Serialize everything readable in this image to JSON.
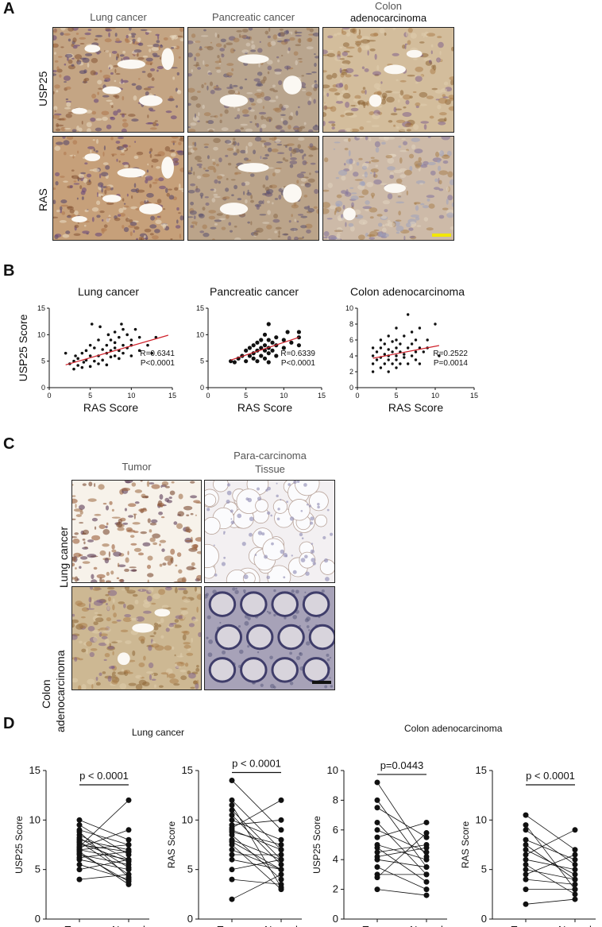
{
  "panels": {
    "A": "A",
    "B": "B",
    "C": "C",
    "D": "D"
  },
  "panelA": {
    "col1": "Lung cancer",
    "col2": "Pancreatic  cancer",
    "col3a": "Colon",
    "col3b": "adenocarcinoma",
    "row1": "USP25",
    "row2": "RAS",
    "scalebar_color": "#f2e600"
  },
  "panelB": {
    "plots": [
      {
        "title": "Lung cancer",
        "ylabel": "USP25 Score",
        "xlabel": "RAS Score",
        "r": "R=0.6341",
        "p": "P<0.0001"
      },
      {
        "title": "Pancreatic cancer",
        "ylabel": "",
        "xlabel": "RAS Score",
        "r": "R=0.6339",
        "p": "P<0.0001"
      },
      {
        "title": "Colon adenocarcinoma",
        "ylabel": "",
        "xlabel": "RAS Score",
        "r": "R=0.2522",
        "p": "P=0.0014"
      }
    ]
  },
  "panelC": {
    "col1": "Tumor",
    "col2a": "Para-carcinoma",
    "col2b": "Tissue",
    "row1": "Lung cancer",
    "row2a": "Colon",
    "row2b": "adenocarcinoma"
  },
  "panelD": {
    "group1": "Lung cancer",
    "group2": "Colon adenocarcinoma",
    "plots": [
      {
        "ylabel": "USP25 Score",
        "p": "p < 0.0001"
      },
      {
        "ylabel": "RAS Score",
        "p": "p < 0.0001"
      },
      {
        "ylabel": "USP25 Score",
        "p": "p=0.0443"
      },
      {
        "ylabel": "RAS Score",
        "p": "p < 0.0001"
      }
    ],
    "x1": "Tumor",
    "x2": "Normal"
  },
  "chart_data": [
    {
      "type": "scatter",
      "title": "Lung cancer",
      "xlabel": "RAS Score",
      "ylabel": "USP25 Score",
      "xlim": [
        0,
        15
      ],
      "ylim": [
        0,
        15
      ],
      "xticks": [
        0,
        5,
        10,
        15
      ],
      "yticks": [
        0,
        5,
        10,
        15
      ],
      "fit": {
        "x": [
          2,
          14.5
        ],
        "y": [
          4.3,
          9.9
        ]
      },
      "points": [
        [
          2,
          6.5
        ],
        [
          2.5,
          4.5
        ],
        [
          3,
          3.5
        ],
        [
          3,
          5
        ],
        [
          3.2,
          6
        ],
        [
          3.5,
          4.2
        ],
        [
          3.5,
          5.5
        ],
        [
          4,
          3.8
        ],
        [
          4,
          6.5
        ],
        [
          4.2,
          4.8
        ],
        [
          4.5,
          5.2
        ],
        [
          4.5,
          7
        ],
        [
          5,
          4
        ],
        [
          5,
          6
        ],
        [
          5,
          8
        ],
        [
          5.2,
          12
        ],
        [
          5.5,
          5
        ],
        [
          5.5,
          7.5
        ],
        [
          6,
          4.5
        ],
        [
          6,
          6
        ],
        [
          6,
          9
        ],
        [
          6.2,
          11.5
        ],
        [
          6.5,
          5.2
        ],
        [
          6.5,
          7.2
        ],
        [
          7,
          4.3
        ],
        [
          7,
          6.5
        ],
        [
          7,
          8
        ],
        [
          7.2,
          10
        ],
        [
          7.5,
          5.8
        ],
        [
          7.5,
          7
        ],
        [
          7.5,
          9
        ],
        [
          8,
          6
        ],
        [
          8,
          7.5
        ],
        [
          8,
          8.5
        ],
        [
          8,
          10.5
        ],
        [
          8.5,
          5.5
        ],
        [
          8.5,
          7
        ],
        [
          8.5,
          9.5
        ],
        [
          8.8,
          12
        ],
        [
          9,
          6.5
        ],
        [
          9,
          8
        ],
        [
          9,
          11
        ],
        [
          9.5,
          7.5
        ],
        [
          9.5,
          10
        ],
        [
          10,
          6
        ],
        [
          10,
          8
        ],
        [
          10,
          9
        ],
        [
          10.5,
          11
        ],
        [
          11,
          7
        ],
        [
          11,
          9.5
        ],
        [
          12,
          8
        ],
        [
          12.5,
          6.5
        ],
        [
          13,
          9.5
        ]
      ]
    },
    {
      "type": "scatter",
      "title": "Pancreatic cancer",
      "xlabel": "RAS Score",
      "ylabel": "",
      "xlim": [
        0,
        15
      ],
      "ylim": [
        0,
        15
      ],
      "xticks": [
        0,
        5,
        10,
        15
      ],
      "yticks": [
        0,
        5,
        10,
        15
      ],
      "fit": {
        "x": [
          3,
          12
        ],
        "y": [
          5.2,
          9.5
        ]
      },
      "points": [
        [
          3,
          5
        ],
        [
          3.5,
          4.8
        ],
        [
          4,
          5.5
        ],
        [
          4.5,
          6
        ],
        [
          5,
          5
        ],
        [
          5,
          7
        ],
        [
          5.5,
          6
        ],
        [
          5.5,
          7.5
        ],
        [
          6,
          5.5
        ],
        [
          6,
          6.5
        ],
        [
          6,
          8
        ],
        [
          6.5,
          5
        ],
        [
          6.5,
          7
        ],
        [
          6.5,
          8.5
        ],
        [
          7,
          6
        ],
        [
          7,
          7.5
        ],
        [
          7,
          9
        ],
        [
          7.5,
          5.5
        ],
        [
          7.5,
          7
        ],
        [
          7.5,
          8
        ],
        [
          7.5,
          10
        ],
        [
          8,
          4.8
        ],
        [
          8,
          6.5
        ],
        [
          8,
          7.5
        ],
        [
          8,
          9
        ],
        [
          8,
          12
        ],
        [
          8.5,
          7
        ],
        [
          8.5,
          8.5
        ],
        [
          9,
          6
        ],
        [
          9,
          8
        ],
        [
          9,
          9.5
        ],
        [
          10,
          7.5
        ],
        [
          10,
          9
        ],
        [
          10.5,
          10.5
        ],
        [
          11,
          8.5
        ],
        [
          12,
          9.5
        ],
        [
          12,
          10.5
        ],
        [
          12,
          8
        ]
      ]
    },
    {
      "type": "scatter",
      "title": "Colon adenocarcinoma",
      "xlabel": "RAS Score",
      "ylabel": "",
      "xlim": [
        0,
        15
      ],
      "ylim": [
        0,
        10
      ],
      "xticks": [
        0,
        5,
        10,
        15
      ],
      "yticks": [
        0,
        2,
        4,
        6,
        8,
        10
      ],
      "fit": {
        "x": [
          2,
          10.5
        ],
        "y": [
          3.7,
          5.3
        ]
      },
      "points": [
        [
          2,
          2
        ],
        [
          2,
          3
        ],
        [
          2,
          4
        ],
        [
          2,
          5
        ],
        [
          2.5,
          3.5
        ],
        [
          2.5,
          4.5
        ],
        [
          3,
          2.5
        ],
        [
          3,
          3.8
        ],
        [
          3,
          5
        ],
        [
          3,
          6
        ],
        [
          3.5,
          3
        ],
        [
          3.5,
          4.2
        ],
        [
          3.5,
          5.5
        ],
        [
          4,
          2
        ],
        [
          4,
          3.5
        ],
        [
          4,
          4
        ],
        [
          4,
          4.8
        ],
        [
          4,
          6.5
        ],
        [
          4.5,
          3
        ],
        [
          4.5,
          4.5
        ],
        [
          4.5,
          5.8
        ],
        [
          5,
          2.5
        ],
        [
          5,
          3.5
        ],
        [
          5,
          4
        ],
        [
          5,
          5
        ],
        [
          5,
          6
        ],
        [
          5,
          7.5
        ],
        [
          5.5,
          3
        ],
        [
          5.5,
          4.5
        ],
        [
          5.5,
          5.5
        ],
        [
          6,
          3.8
        ],
        [
          6,
          4.2
        ],
        [
          6,
          6.5
        ],
        [
          6.5,
          3
        ],
        [
          6.5,
          5
        ],
        [
          6.5,
          9.2
        ],
        [
          7,
          4
        ],
        [
          7,
          5.5
        ],
        [
          7,
          7
        ],
        [
          7.5,
          3.5
        ],
        [
          7.5,
          4.5
        ],
        [
          7.5,
          6
        ],
        [
          8,
          3
        ],
        [
          8,
          5
        ],
        [
          8,
          7.5
        ],
        [
          8.5,
          4.5
        ],
        [
          9,
          5
        ],
        [
          9,
          6
        ],
        [
          10,
          8
        ],
        [
          10.5,
          4
        ]
      ]
    },
    {
      "type": "paired",
      "title": "Lung cancer",
      "ylabel": "USP25 Score",
      "ylim": [
        0,
        15
      ],
      "yticks": [
        0,
        5,
        10,
        15
      ],
      "categories": [
        "Tumor",
        "Normal"
      ],
      "pairs": [
        [
          7.5,
          6.8
        ],
        [
          7,
          6
        ],
        [
          8,
          7
        ],
        [
          6.5,
          5.5
        ],
        [
          9,
          7.5
        ],
        [
          8.5,
          6
        ],
        [
          6,
          5
        ],
        [
          7.8,
          4.5
        ],
        [
          10,
          8
        ],
        [
          7.2,
          9
        ],
        [
          5,
          6
        ],
        [
          4,
          4.5
        ],
        [
          6.8,
          3.5
        ],
        [
          8.2,
          5.2
        ],
        [
          9.5,
          6.5
        ],
        [
          7,
          7.5
        ],
        [
          5.5,
          4
        ],
        [
          6.2,
          6.8
        ],
        [
          7.7,
          5.8
        ],
        [
          8.8,
          4.2
        ],
        [
          7.3,
          12
        ],
        [
          6.6,
          3.8
        ]
      ]
    },
    {
      "type": "paired",
      "title": "Lung cancer",
      "ylabel": "RAS Score",
      "ylim": [
        0,
        15
      ],
      "yticks": [
        0,
        5,
        10,
        15
      ],
      "categories": [
        "Tumor",
        "Normal"
      ],
      "pairs": [
        [
          8,
          6
        ],
        [
          9,
          7
        ],
        [
          10,
          8
        ],
        [
          7,
          5
        ],
        [
          11,
          6
        ],
        [
          8.5,
          4
        ],
        [
          6,
          5
        ],
        [
          12,
          7
        ],
        [
          14,
          9
        ],
        [
          7.5,
          3
        ],
        [
          5,
          6
        ],
        [
          4,
          3.5
        ],
        [
          9.5,
          10
        ],
        [
          2,
          4.5
        ],
        [
          10.5,
          5.5
        ],
        [
          8.8,
          7.5
        ],
        [
          6.5,
          6.5
        ],
        [
          11.5,
          3.2
        ],
        [
          9.2,
          12
        ],
        [
          7.8,
          5
        ]
      ]
    },
    {
      "type": "paired",
      "title": "Colon adenocarcinoma",
      "ylabel": "USP25 Score",
      "ylim": [
        0,
        10
      ],
      "yticks": [
        0,
        2,
        4,
        6,
        8,
        10
      ],
      "categories": [
        "Tumor",
        "Normal"
      ],
      "pairs": [
        [
          4,
          3.5
        ],
        [
          5,
          4
        ],
        [
          6,
          4.5
        ],
        [
          3,
          3
        ],
        [
          4.5,
          5
        ],
        [
          9.2,
          4.2
        ],
        [
          2,
          1.6
        ],
        [
          7.5,
          5.5
        ],
        [
          8,
          3.5
        ],
        [
          5.5,
          6.5
        ],
        [
          3.5,
          2
        ],
        [
          4.2,
          4.8
        ],
        [
          6.5,
          3
        ],
        [
          2.8,
          5.8
        ],
        [
          4.8,
          2.5
        ]
      ]
    },
    {
      "type": "paired",
      "title": "Colon adenocarcinoma",
      "ylabel": "RAS Score",
      "ylim": [
        0,
        15
      ],
      "yticks": [
        0,
        5,
        10,
        15
      ],
      "categories": [
        "Tumor",
        "Normal"
      ],
      "pairs": [
        [
          5,
          4
        ],
        [
          6,
          5
        ],
        [
          7,
          4.5
        ],
        [
          4,
          3.5
        ],
        [
          8,
          6
        ],
        [
          10.5,
          7
        ],
        [
          1.5,
          2
        ],
        [
          9,
          5.5
        ],
        [
          6.5,
          9
        ],
        [
          3,
          3
        ],
        [
          5.5,
          2.5
        ],
        [
          7.5,
          4
        ],
        [
          4.5,
          6.5
        ],
        [
          9.5,
          3
        ]
      ]
    }
  ]
}
